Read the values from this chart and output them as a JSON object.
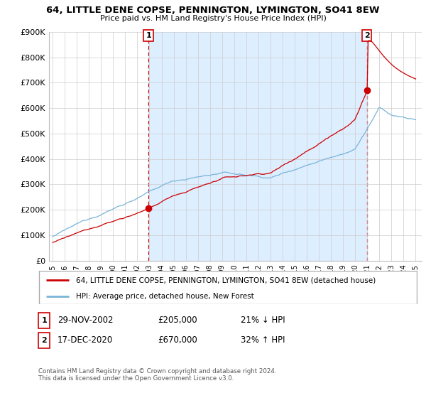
{
  "title": "64, LITTLE DENE COPSE, PENNINGTON, LYMINGTON, SO41 8EW",
  "subtitle": "Price paid vs. HM Land Registry's House Price Index (HPI)",
  "legend_line1": "64, LITTLE DENE COPSE, PENNINGTON, LYMINGTON, SO41 8EW (detached house)",
  "legend_line2": "HPI: Average price, detached house, New Forest",
  "sale1_date": "29-NOV-2002",
  "sale1_price": "£205,000",
  "sale1_hpi": "21% ↓ HPI",
  "sale1_year": 2002.92,
  "sale1_value": 205000,
  "sale2_date": "17-DEC-2020",
  "sale2_price": "£670,000",
  "sale2_hpi": "32% ↑ HPI",
  "sale2_year": 2020.96,
  "sale2_value": 670000,
  "sale_line_color": "#cc0000",
  "hpi_line_color": "#7ab4d8",
  "marker_color": "#cc0000",
  "dashed_line_color": "#cc0000",
  "shade_color": "#ddeeff",
  "ylim": [
    0,
    900000
  ],
  "yticks": [
    0,
    100000,
    200000,
    300000,
    400000,
    500000,
    600000,
    700000,
    800000,
    900000
  ],
  "footnote": "Contains HM Land Registry data © Crown copyright and database right 2024.\nThis data is licensed under the Open Government Licence v3.0.",
  "background_color": "#ffffff",
  "grid_color": "#cccccc"
}
